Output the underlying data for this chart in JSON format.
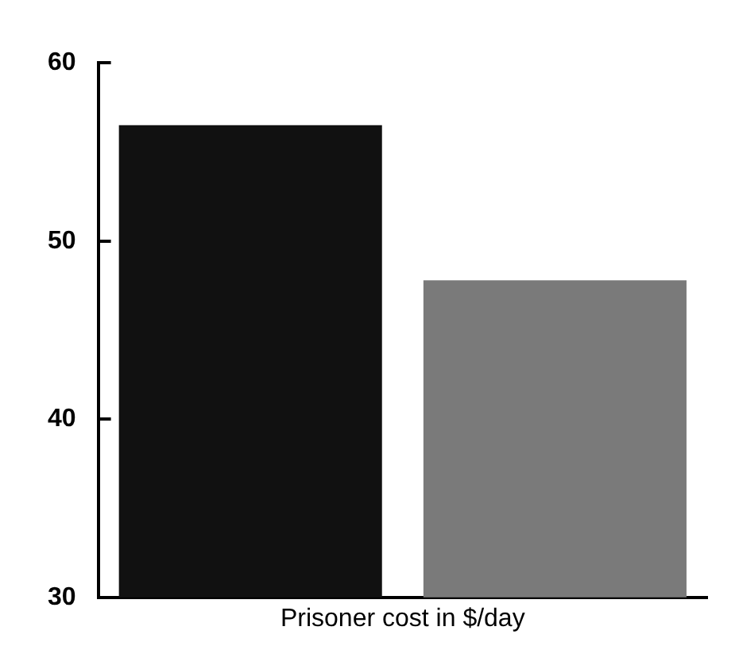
{
  "chart_data": {
    "type": "bar",
    "xlabel": "Prisoner cost in $/day",
    "categories": [
      null,
      null
    ],
    "values": [
      56.5,
      47.8
    ],
    "colors": [
      "#111111",
      "#7a7a7a"
    ],
    "ylim": [
      30,
      60
    ],
    "yticks": [
      30,
      40,
      50,
      60
    ],
    "grid": false,
    "legend": false
  }
}
